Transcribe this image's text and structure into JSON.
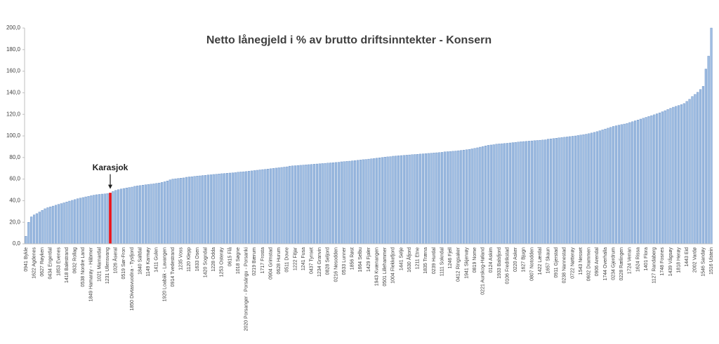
{
  "chart_data": {
    "type": "bar",
    "title": "Netto lånegjeld i % av brutto driftsinntekter - Konsern",
    "categories": [
      "0941 Bykle",
      null,
      null,
      "1622 Agdenes",
      null,
      null,
      "0627 Røyken",
      null,
      null,
      "0434 Engerdal",
      null,
      null,
      "1853 Evenes",
      null,
      null,
      "1418 Balestrand",
      null,
      null,
      "0632 Rollag",
      null,
      null,
      "0538 Nordre Land",
      null,
      null,
      "1849 Hamarøy - Hábmer",
      null,
      null,
      "1021 Marnardal",
      null,
      null,
      "1231 Ullensvang",
      null,
      null,
      "1026 Åseral",
      null,
      null,
      "0519 Sør-Fron",
      null,
      null,
      "1850 Divtasvuodna - Tysfjord",
      null,
      null,
      "1840 Saltdal",
      null,
      null,
      "1149 Karmøy",
      null,
      null,
      "1411 Gulen",
      null,
      null,
      "1920 Loabák - Lavangen",
      null,
      null,
      "0914 Tvedestrand",
      null,
      null,
      "1235 Voss",
      null,
      null,
      "1120 Klepp",
      null,
      null,
      "1633 Osen",
      null,
      null,
      "1420 Sogndal",
      null,
      null,
      "1228 Odda",
      null,
      null,
      "1253 Osterøy",
      null,
      null,
      "0615 Flå",
      null,
      null,
      "1018 Søgne",
      null,
      null,
      "2020 Porsanger - Porsángu - Porsanki",
      null,
      null,
      "0219 Bærum",
      null,
      null,
      "1717 Frosta",
      null,
      null,
      "0904 Grimstad",
      null,
      null,
      "0628 Hurum",
      null,
      null,
      "0511 Dovre",
      null,
      null,
      "1222 Fitjar",
      null,
      null,
      "1241 Fusa",
      null,
      null,
      "0437 Tynset",
      null,
      null,
      "1234 Granvin",
      null,
      null,
      "0828 Seljord",
      null,
      null,
      "0216 Nesodden",
      null,
      null,
      "0533 Lunner",
      null,
      null,
      "1856 Røst",
      null,
      null,
      "1664 Selbu",
      null,
      null,
      "1429 Fjaler",
      null,
      null,
      "1943 Kvænangen",
      null,
      null,
      "0501 Lillehammer",
      null,
      null,
      "1004 Flekkefjord",
      null,
      null,
      "1441 Selje",
      null,
      null,
      "1630 Åfjord",
      null,
      null,
      "1211 Etne",
      null,
      null,
      "1835 Træna",
      null,
      null,
      "0239 Hurdal",
      null,
      null,
      "1111 Sokndal",
      null,
      null,
      "1246 Fjell",
      null,
      null,
      "0412 Ringsaker",
      null,
      null,
      "1941 Skjervøy",
      null,
      null,
      "0819 Nome",
      null,
      null,
      "0221 Aurskog-Høland",
      null,
      null,
      "0124 Askim",
      null,
      null,
      "1933 Balsfjord",
      null,
      null,
      "0106 Fredrikstad",
      null,
      null,
      "0220 Asker",
      null,
      null,
      "1627 Bjugn",
      null,
      null,
      "0807 Notodden",
      null,
      null,
      "1422 Lærdal",
      null,
      null,
      "1657 Skaun",
      null,
      null,
      "0911 Gjerstad",
      null,
      null,
      "0238 Nannestad",
      null,
      null,
      "0722 Nøtterøy",
      null,
      null,
      "1543 Nesset",
      null,
      null,
      "0602 Drammen",
      null,
      null,
      "0906 Arendal",
      null,
      null,
      "1744 Overhalla",
      null,
      null,
      "0234 Gjerdrum",
      null,
      null,
      "0228 Rælingen",
      null,
      null,
      "1724 Verran",
      null,
      null,
      "1624 Rissa",
      null,
      null,
      "1401 Flora",
      null,
      null,
      "1127 Randaberg",
      null,
      null,
      "1748 Fosnes",
      null,
      null,
      "1439 Vågsøy",
      null,
      null,
      "1818 Herøy",
      null,
      null,
      "1443 Eid",
      null,
      null,
      "2002 Vardø",
      null,
      null,
      "1546 Sandøy",
      null,
      null,
      "1516 Ulstein"
    ],
    "values": [
      7,
      20,
      25,
      26.8,
      28,
      29.5,
      31,
      32.5,
      33.5,
      34.3,
      35,
      35.8,
      36.6,
      37.3,
      38,
      38.8,
      39.6,
      40.3,
      41,
      41.8,
      42.4,
      42.9,
      43.5,
      44,
      44.6,
      45.1,
      45.5,
      45.8,
      46.1,
      46.3,
      46.6,
      47,
      48.5,
      49.5,
      50.2,
      50.8,
      51.3,
      51.8,
      52.2,
      52.6,
      53.3,
      53.7,
      54,
      54.4,
      54.7,
      55,
      55.3,
      55.6,
      56,
      56.4,
      56.9,
      57.5,
      58.3,
      59.3,
      60,
      60.3,
      60.6,
      60.9,
      61.1,
      61.7,
      62,
      62.2,
      62.5,
      62.8,
      63,
      63.3,
      63.5,
      63.8,
      64,
      64.3,
      64.5,
      64.8,
      65,
      65.2,
      65.4,
      65.6,
      65.8,
      66,
      66.4,
      66.6,
      66.8,
      67,
      67.3,
      67.6,
      67.9,
      68.2,
      68.5,
      68.8,
      69,
      69.3,
      69.6,
      69.9,
      70.2,
      70.5,
      70.8,
      71.1,
      71.4,
      72,
      72.2,
      72.4,
      72.6,
      72.8,
      73,
      73.2,
      73.4,
      73.6,
      73.8,
      74,
      74.2,
      74.4,
      74.6,
      74.8,
      75,
      75.2,
      75.4,
      75.6,
      76,
      76.2,
      76.4,
      76.6,
      76.9,
      77.1,
      77.4,
      77.7,
      78,
      78.2,
      78.5,
      78.8,
      79.1,
      79.4,
      79.7,
      80,
      80.4,
      80.6,
      80.8,
      81.2,
      81.4,
      81.6,
      81.8,
      82,
      82.2,
      82.4,
      82.6,
      82.8,
      83,
      83.2,
      83.4,
      83.6,
      83.8,
      84,
      84.2,
      84.4,
      84.6,
      84.8,
      85.2,
      85.4,
      85.6,
      85.8,
      86,
      86.3,
      86.6,
      86.9,
      87.2,
      87.5,
      88,
      88.5,
      89,
      89.6,
      90.2,
      90.8,
      91.3,
      91.6,
      91.9,
      92.4,
      92.6,
      92.8,
      93,
      93.2,
      93.5,
      93.8,
      94,
      94.3,
      94.6,
      94.8,
      95,
      95.2,
      95.4,
      95.6,
      95.8,
      96,
      96.2,
      96.4,
      97,
      97.3,
      97.6,
      97.9,
      98.2,
      98.5,
      98.8,
      99.1,
      99.4,
      99.7,
      100,
      100.4,
      100.8,
      101.2,
      101.6,
      102.1,
      102.7,
      103.3,
      104,
      104.8,
      105.6,
      106.4,
      107.2,
      108,
      108.8,
      109.4,
      110,
      110.5,
      111,
      111.6,
      112.4,
      113.2,
      114,
      114.8,
      115.6,
      116.4,
      117.2,
      118,
      118.8,
      119.6,
      120.5,
      121.4,
      122.4,
      123.4,
      124.5,
      125.6,
      126.6,
      127.4,
      128.2,
      129,
      130,
      132,
      134,
      136.5,
      138.5,
      140.5,
      143,
      146,
      162,
      174,
      200
    ],
    "color": "#9fbde2",
    "annotations": [
      {
        "text": "Karasjok",
        "category_index": 31,
        "color": "#e8141c"
      }
    ],
    "ylim": [
      0,
      200
    ],
    "yticks": [
      {
        "value": 0,
        "label": "0,0"
      },
      {
        "value": 20,
        "label": "20,0"
      },
      {
        "value": 40,
        "label": "40,0"
      },
      {
        "value": 60,
        "label": "60,0"
      },
      {
        "value": 80,
        "label": "80,0"
      },
      {
        "value": 100,
        "label": "100,0"
      },
      {
        "value": 120,
        "label": "120,0"
      },
      {
        "value": 140,
        "label": "140,0"
      },
      {
        "value": 160,
        "label": "160,0"
      },
      {
        "value": 180,
        "label": "180,0"
      },
      {
        "value": 200,
        "label": "200,0"
      }
    ],
    "grid": false
  }
}
